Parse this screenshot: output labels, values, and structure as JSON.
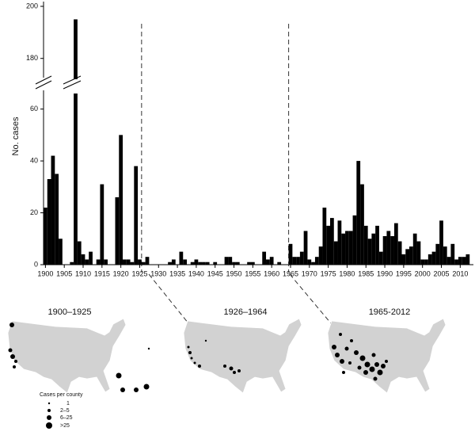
{
  "chart_data": {
    "type": "bar",
    "y_label": "No. cases",
    "color": "#000000",
    "x": [
      1900,
      1901,
      1902,
      1903,
      1904,
      1905,
      1906,
      1907,
      1908,
      1909,
      1910,
      1911,
      1912,
      1913,
      1914,
      1915,
      1916,
      1917,
      1918,
      1919,
      1920,
      1921,
      1922,
      1923,
      1924,
      1925,
      1926,
      1927,
      1928,
      1929,
      1930,
      1931,
      1932,
      1933,
      1934,
      1935,
      1936,
      1937,
      1938,
      1939,
      1940,
      1941,
      1942,
      1943,
      1944,
      1945,
      1946,
      1947,
      1948,
      1949,
      1950,
      1951,
      1952,
      1953,
      1954,
      1955,
      1956,
      1957,
      1958,
      1959,
      1960,
      1961,
      1962,
      1963,
      1964,
      1965,
      1966,
      1967,
      1968,
      1969,
      1970,
      1971,
      1972,
      1973,
      1974,
      1975,
      1976,
      1977,
      1978,
      1979,
      1980,
      1981,
      1982,
      1983,
      1984,
      1985,
      1986,
      1987,
      1988,
      1989,
      1990,
      1991,
      1992,
      1993,
      1994,
      1995,
      1996,
      1997,
      1998,
      1999,
      2000,
      2001,
      2002,
      2003,
      2004,
      2005,
      2006,
      2007,
      2008,
      2009,
      2010,
      2011,
      2012
    ],
    "values": [
      22,
      33,
      42,
      35,
      10,
      0,
      0,
      1,
      195,
      9,
      4,
      2,
      5,
      0,
      2,
      31,
      2,
      0,
      0,
      26,
      50,
      2,
      2,
      1,
      38,
      2,
      1,
      3,
      0,
      0,
      0,
      0,
      0,
      1,
      2,
      0,
      5,
      2,
      0,
      1,
      2,
      1,
      1,
      1,
      0,
      1,
      0,
      0,
      3,
      3,
      1,
      1,
      0,
      0,
      1,
      1,
      0,
      0,
      5,
      2,
      3,
      0,
      1,
      0,
      0,
      8,
      3,
      3,
      5,
      13,
      2,
      1,
      3,
      7,
      22,
      15,
      18,
      9,
      17,
      12,
      13,
      13,
      19,
      40,
      31,
      15,
      10,
      12,
      15,
      5,
      11,
      13,
      11,
      16,
      9,
      4,
      6,
      7,
      12,
      9,
      2,
      2,
      4,
      5,
      8,
      17,
      7,
      3,
      8,
      2,
      3,
      3,
      4
    ],
    "xlim": [
      1899.5,
      2013.5
    ],
    "xticks": [
      1900,
      1905,
      1910,
      1915,
      1920,
      1925,
      1930,
      1935,
      1940,
      1945,
      1950,
      1955,
      1960,
      1965,
      1970,
      1975,
      1980,
      1985,
      1990,
      1995,
      2000,
      2005,
      2010
    ],
    "ylim": [
      0,
      200
    ],
    "ybreak": [
      66,
      172
    ],
    "yticks": [
      0,
      20,
      40,
      60,
      180,
      200
    ],
    "dividers": [
      1925.5,
      1964.5
    ],
    "maps": [
      "1900–1925",
      "1926–1964",
      "1965-2012"
    ],
    "legend": {
      "title": "Cases per county",
      "items": [
        "1",
        "2–5",
        "6–25",
        ">25"
      ]
    }
  }
}
